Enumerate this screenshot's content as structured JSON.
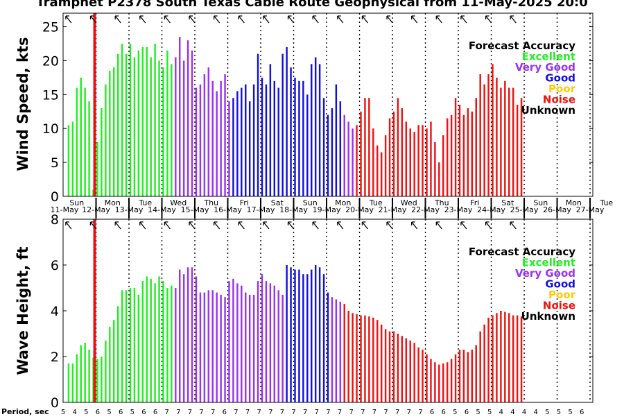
{
  "title": "Tramphet P2378 South Texas Cable Route Geophysical from 11-May-2025 20:0",
  "colors": {
    "Excellent": "#22ee22",
    "Very Good": "#9933ee",
    "Good": "#1111dd",
    "Poor": "#ffcc00",
    "Noise": "#ee1111",
    "Unknown": "#000000",
    "now_line": "#ee1111"
  },
  "legend": {
    "title": "Forecast Accuracy",
    "items": [
      {
        "label": "Excellent",
        "color": "#22ee22"
      },
      {
        "label": "Very Good",
        "color": "#9933ee"
      },
      {
        "label": "Good",
        "color": "#1111dd"
      },
      {
        "label": "Poor",
        "color": "#ffcc00"
      },
      {
        "label": "Noise",
        "color": "#ee1111"
      },
      {
        "label": "Unknown",
        "color": "#000000"
      }
    ]
  },
  "day_labels": [
    {
      "day": "Sun",
      "date": "11-May"
    },
    {
      "day": "Mon",
      "date": "12-May"
    },
    {
      "day": "Tue",
      "date": "13-May"
    },
    {
      "day": "Wed",
      "date": "14-May"
    },
    {
      "day": "Thu",
      "date": "15-May"
    },
    {
      "day": "Fri",
      "date": "16-May"
    },
    {
      "day": "Sat",
      "date": "17-May"
    },
    {
      "day": "Sun",
      "date": "18-May"
    },
    {
      "day": "Mon",
      "date": "19-May"
    },
    {
      "day": "Tue",
      "date": "20-May"
    },
    {
      "day": "Wed",
      "date": "21-May"
    },
    {
      "day": "Thu",
      "date": "22-May"
    },
    {
      "day": "Fri",
      "date": "23-May"
    },
    {
      "day": "Sat",
      "date": "24-May"
    },
    {
      "day": "Sun",
      "date": "25-May"
    },
    {
      "day": "Mon",
      "date": "26-May"
    },
    {
      "day": "Tue",
      "date": "27-May"
    }
  ],
  "period_label": "Period, sec",
  "period_values": [
    5,
    4,
    5,
    6,
    5,
    6,
    5,
    6,
    6,
    7,
    7,
    7,
    7,
    7,
    6,
    7,
    7,
    7,
    7,
    7,
    7,
    7,
    7,
    7,
    7,
    7,
    7,
    7,
    7,
    7,
    7,
    7,
    6,
    6,
    5,
    6,
    5,
    5,
    4,
    4,
    4,
    4,
    5,
    5,
    5,
    6
  ],
  "chart_data": [
    {
      "type": "bar",
      "panel": "wind",
      "ylabel": "Wind Speed, kts",
      "ylim": [
        0,
        27
      ],
      "yticks": [
        0,
        5,
        10,
        15,
        20,
        25
      ],
      "x_unit": "hours since 11-May 00:00",
      "x_range": [
        -4,
        382
      ],
      "now_x": 19,
      "values": [
        10.5,
        11,
        16,
        17.5,
        16,
        14,
        1,
        8,
        13,
        16.5,
        18.5,
        19,
        21,
        22.5,
        21,
        22.5,
        20.5,
        21.5,
        22,
        22,
        20.5,
        22.5,
        20,
        19,
        21.5,
        19.5,
        20.5,
        23.5,
        20,
        23,
        21.5,
        16,
        16.5,
        18,
        19,
        17,
        15.5,
        17,
        18,
        14,
        14.5,
        15.5,
        16,
        16.5,
        14,
        16.5,
        21,
        17.5,
        16.5,
        19.5,
        17,
        16,
        21,
        22,
        19,
        17.5,
        17,
        17,
        15,
        19.5,
        20.5,
        19.5,
        14.5,
        12,
        13,
        16.5,
        14,
        12,
        11,
        10,
        10.5,
        12.5,
        14.5,
        14.5,
        10,
        7.5,
        6.5,
        9,
        11.5,
        12.5,
        14.5,
        13,
        11,
        10,
        9.5,
        10.5,
        10.5,
        10,
        11,
        8,
        5,
        9,
        11.5,
        12,
        14.5,
        13.5,
        12,
        13,
        12.5,
        14.5,
        18,
        16.5,
        18,
        19.5,
        17.5,
        16,
        17,
        16,
        16,
        13.5,
        14.5
      ],
      "categories": [
        "Excellent",
        "Excellent",
        "Excellent",
        "Excellent",
        "Excellent",
        "Excellent",
        "Excellent",
        "Excellent",
        "Excellent",
        "Excellent",
        "Excellent",
        "Excellent",
        "Excellent",
        "Excellent",
        "Excellent",
        "Excellent",
        "Excellent",
        "Excellent",
        "Excellent",
        "Excellent",
        "Excellent",
        "Excellent",
        "Excellent",
        "Excellent",
        "Excellent",
        "Excellent",
        "Very Good",
        "Very Good",
        "Very Good",
        "Very Good",
        "Very Good",
        "Very Good",
        "Very Good",
        "Very Good",
        "Very Good",
        "Very Good",
        "Very Good",
        "Very Good",
        "Very Good",
        "Very Good",
        "Good",
        "Good",
        "Good",
        "Good",
        "Good",
        "Good",
        "Good",
        "Good",
        "Good",
        "Good",
        "Good",
        "Good",
        "Good",
        "Good",
        "Good",
        "Good",
        "Good",
        "Good",
        "Good",
        "Good",
        "Good",
        "Good",
        "Good",
        "Good",
        "Good",
        "Good",
        "Good",
        "Very Good",
        "Very Good",
        "Very Good",
        "Noise",
        "Noise",
        "Noise",
        "Noise",
        "Noise",
        "Noise",
        "Noise",
        "Noise",
        "Noise",
        "Noise",
        "Noise",
        "Noise",
        "Noise",
        "Noise",
        "Noise",
        "Noise",
        "Noise",
        "Noise",
        "Noise",
        "Noise",
        "Noise",
        "Noise",
        "Noise",
        "Noise",
        "Noise",
        "Noise",
        "Noise",
        "Noise",
        "Noise",
        "Noise",
        "Noise",
        "Noise",
        "Noise",
        "Noise",
        "Noise",
        "Noise",
        "Noise",
        "Noise",
        "Noise",
        "Noise",
        "Noise"
      ]
    },
    {
      "type": "bar",
      "panel": "wave",
      "ylabel": "Wave Height, ft",
      "ylim": [
        0,
        8
      ],
      "yticks": [
        0,
        2,
        4,
        6,
        8
      ],
      "x_unit": "hours since 11-May 00:00",
      "x_range": [
        -4,
        382
      ],
      "now_x": 19,
      "values": [
        1.7,
        1.7,
        2.1,
        2.5,
        2.6,
        2.3,
        1.95,
        1.9,
        2.0,
        2.7,
        3.3,
        3.6,
        4.2,
        4.9,
        4.9,
        5.0,
        5.0,
        4.7,
        5.3,
        5.5,
        5.4,
        5.2,
        5.5,
        5.3,
        5.0,
        5.1,
        5.0,
        5.8,
        5.6,
        5.9,
        5.9,
        5.5,
        4.8,
        4.8,
        4.9,
        4.9,
        4.8,
        4.7,
        4.6,
        5.3,
        5.4,
        5.2,
        5.1,
        4.8,
        4.7,
        4.7,
        5.3,
        5.6,
        5.3,
        5.2,
        5.1,
        4.9,
        4.7,
        6.0,
        5.9,
        5.8,
        5.8,
        5.6,
        5.6,
        5.8,
        6.0,
        5.9,
        5.6,
        4.8,
        4.6,
        4.5,
        4.4,
        4.3,
        4.0,
        3.9,
        3.85,
        3.8,
        3.8,
        3.75,
        3.7,
        3.6,
        3.4,
        3.2,
        3.1,
        3.1,
        3.0,
        2.9,
        2.8,
        2.7,
        2.6,
        2.4,
        2.3,
        2.1,
        1.9,
        1.75,
        1.65,
        1.7,
        1.75,
        1.9,
        2.1,
        2.3,
        2.3,
        2.2,
        2.3,
        2.5,
        3.1,
        3.4,
        3.7,
        3.8,
        3.9,
        4.0,
        3.95,
        3.9,
        3.8,
        3.8,
        3.75
      ],
      "categories": [
        "Excellent",
        "Excellent",
        "Excellent",
        "Excellent",
        "Excellent",
        "Excellent",
        "Excellent",
        "Excellent",
        "Excellent",
        "Excellent",
        "Excellent",
        "Excellent",
        "Excellent",
        "Excellent",
        "Excellent",
        "Excellent",
        "Excellent",
        "Excellent",
        "Excellent",
        "Excellent",
        "Excellent",
        "Excellent",
        "Excellent",
        "Excellent",
        "Excellent",
        "Excellent",
        "Very Good",
        "Very Good",
        "Very Good",
        "Very Good",
        "Very Good",
        "Very Good",
        "Very Good",
        "Very Good",
        "Very Good",
        "Very Good",
        "Very Good",
        "Very Good",
        "Very Good",
        "Very Good",
        "Very Good",
        "Very Good",
        "Very Good",
        "Very Good",
        "Very Good",
        "Very Good",
        "Very Good",
        "Very Good",
        "Very Good",
        "Very Good",
        "Very Good",
        "Very Good",
        "Very Good",
        "Good",
        "Good",
        "Good",
        "Good",
        "Good",
        "Good",
        "Good",
        "Good",
        "Good",
        "Good",
        "Good",
        "Very Good",
        "Very Good",
        "Very Good",
        "Noise",
        "Noise",
        "Noise",
        "Noise",
        "Noise",
        "Noise",
        "Noise",
        "Noise",
        "Noise",
        "Noise",
        "Noise",
        "Noise",
        "Noise",
        "Noise",
        "Noise",
        "Noise",
        "Noise",
        "Noise",
        "Noise",
        "Noise",
        "Noise",
        "Noise",
        "Noise",
        "Noise",
        "Noise",
        "Noise",
        "Noise",
        "Noise",
        "Noise",
        "Noise",
        "Noise",
        "Noise",
        "Noise",
        "Noise",
        "Noise",
        "Noise",
        "Noise",
        "Noise",
        "Noise",
        "Noise",
        "Noise",
        "Noise",
        "Noise",
        "Noise"
      ]
    }
  ]
}
